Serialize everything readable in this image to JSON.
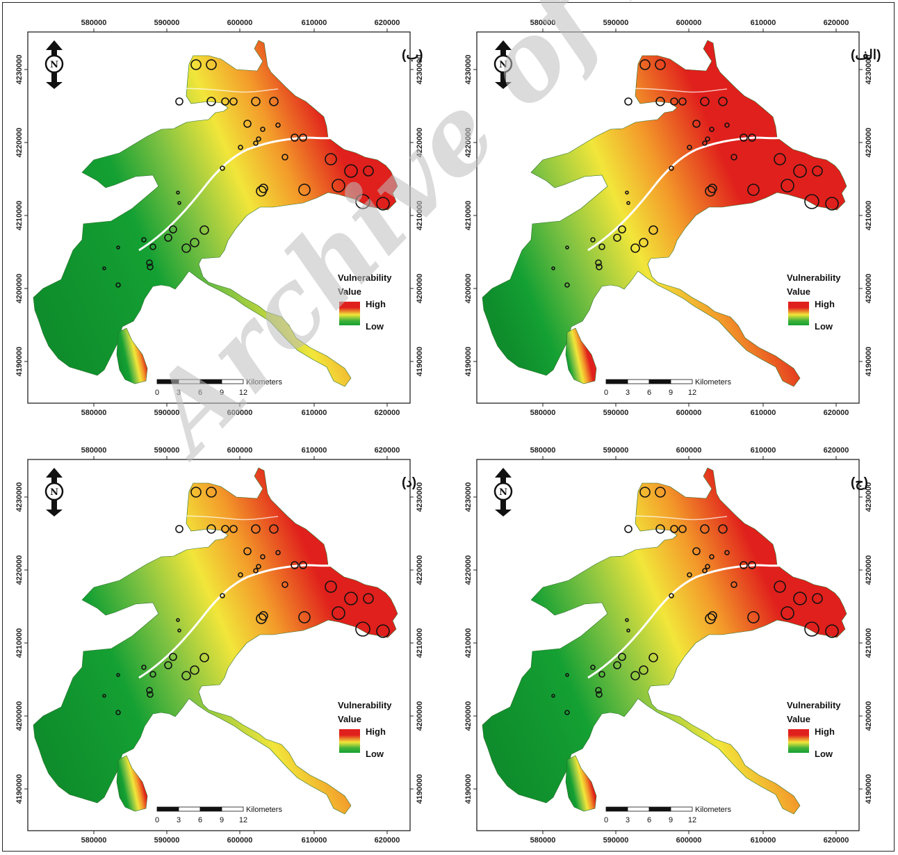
{
  "legend": {
    "title_line1": "Vulnerability",
    "title_line2": "Value",
    "high": "High",
    "low": "Low"
  },
  "scalebar": {
    "unit": "Kilometers",
    "ticks": [
      "0",
      "3",
      "6",
      "9",
      "12"
    ]
  },
  "north_arrow": {
    "letter": "N"
  },
  "axes": {
    "x_ticks": [
      "580000",
      "590000",
      "600000",
      "610000",
      "620000"
    ],
    "y_ticks": [
      "4190000",
      "4200000",
      "4210000",
      "4220000",
      "4230000"
    ]
  },
  "watermark": "Archive of SID",
  "colors": {
    "high": "#e0201c",
    "mid": "#f2e63a",
    "low": "#14a033"
  },
  "panels": [
    {
      "id": "b",
      "label": "(ب)",
      "high_level": 0.45
    },
    {
      "id": "alef",
      "label": "(الف)",
      "high_level": 0.95
    },
    {
      "id": "d",
      "label": "(د)",
      "high_level": 0.6
    },
    {
      "id": "jim",
      "label": "(ج)",
      "high_level": 0.62
    }
  ]
}
